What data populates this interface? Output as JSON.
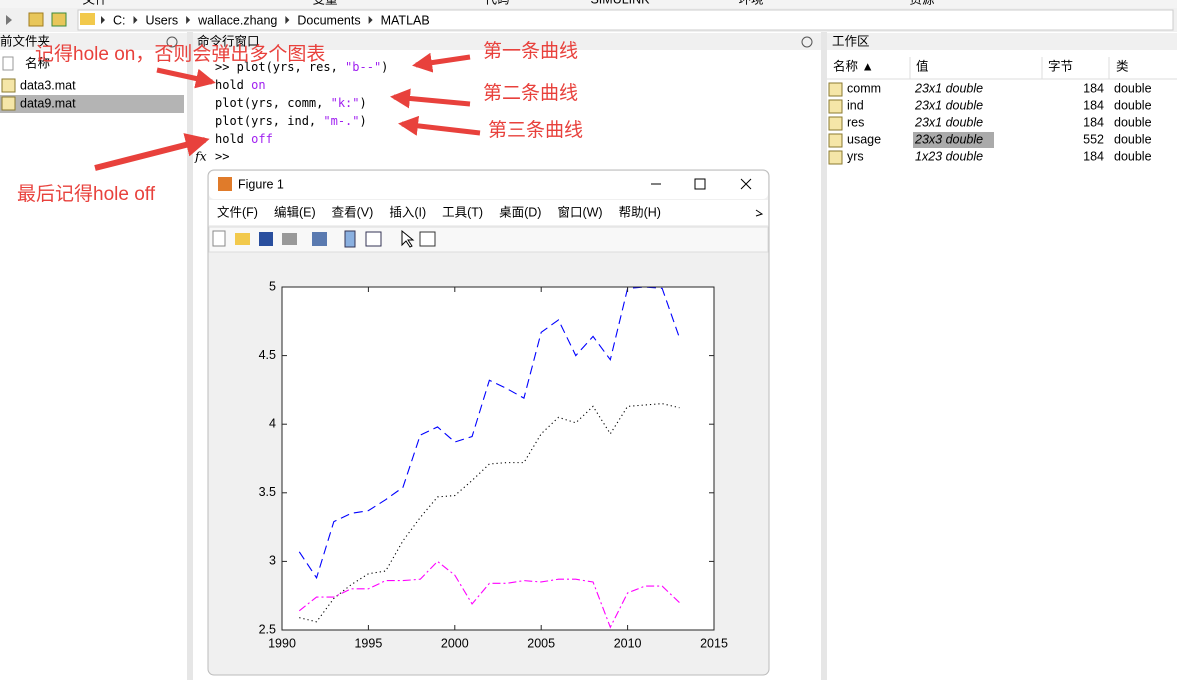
{
  "toolbar": {
    "tabs": [
      "文件",
      "变量",
      "代码",
      "SIMULINK",
      "环境",
      "资源"
    ],
    "path": [
      "C:",
      "Users",
      "wallace.zhang",
      "Documents",
      "MATLAB"
    ]
  },
  "current_folder": {
    "title": "前文件夹",
    "column": "名称",
    "files": [
      "data3.mat",
      "data9.mat"
    ]
  },
  "command_window": {
    "title": "命令行窗口",
    "lines": [
      [
        ">> plot(yrs, res, ",
        "\"b--\"",
        ")"
      ],
      [
        "hold ",
        "on"
      ],
      [
        "plot(yrs, comm, ",
        "\"k:\"",
        ")"
      ],
      [
        "plot(yrs, ind, ",
        "\"m-.\"",
        ")"
      ],
      [
        "hold ",
        "off"
      ]
    ],
    "function_icon": "fx",
    "prompt": ">>"
  },
  "annotations": [
    "记得hole on，否则会弹出多个图表",
    "第一条曲线",
    "第二条曲线",
    "第三条曲线",
    "最后记得hole off"
  ],
  "workspace": {
    "title": "工作区",
    "columns": [
      "名称 ▲",
      "值",
      "字节",
      "类"
    ],
    "rows": [
      [
        "comm",
        "23x1 double",
        184,
        "double"
      ],
      [
        "ind",
        "23x1 double",
        184,
        "double"
      ],
      [
        "res",
        "23x1 double",
        184,
        "double"
      ],
      [
        "usage",
        "23x3 double",
        552,
        "double"
      ],
      [
        "yrs",
        "1x23 double",
        184,
        "double"
      ]
    ]
  },
  "figure": {
    "title": "Figure 1",
    "menu": [
      "文件(F)",
      "编辑(E)",
      "查看(V)",
      "插入(I)",
      "工具(T)",
      "桌面(D)",
      "窗口(W)",
      "帮助(H)"
    ],
    "chart_data": {
      "type": "line",
      "x": [
        1991,
        1992,
        1993,
        1994,
        1995,
        1996,
        1997,
        1998,
        1999,
        2000,
        2001,
        2002,
        2003,
        2004,
        2005,
        2006,
        2007,
        2008,
        2009,
        2010,
        2011,
        2012,
        2013
      ],
      "series": [
        {
          "color": "#0000ff",
          "line_style": "--",
          "values": [
            3.07,
            2.88,
            3.29,
            3.35,
            3.37,
            3.45,
            3.54,
            3.92,
            3.98,
            3.87,
            3.91,
            4.32,
            4.26,
            4.19,
            4.67,
            4.76,
            4.5,
            4.64,
            4.47,
            4.99,
            5.0,
            4.99,
            4.63
          ]
        },
        {
          "color": "#000000",
          "line_style": ":",
          "values": [
            2.59,
            2.56,
            2.73,
            2.83,
            2.91,
            2.93,
            3.15,
            3.32,
            3.47,
            3.48,
            3.59,
            3.71,
            3.72,
            3.72,
            3.93,
            4.05,
            4.01,
            4.13,
            3.93,
            4.13,
            4.14,
            4.15,
            4.12
          ]
        },
        {
          "color": "#ff00ff",
          "line_style": "-.",
          "values": [
            2.64,
            2.74,
            2.74,
            2.8,
            2.8,
            2.86,
            2.86,
            2.87,
            3.0,
            2.9,
            2.69,
            2.84,
            2.84,
            2.86,
            2.85,
            2.87,
            2.87,
            2.85,
            2.52,
            2.77,
            2.82,
            2.82,
            2.7
          ]
        }
      ],
      "xlim": [
        1990,
        2015
      ],
      "xticks": [
        1990,
        1995,
        2000,
        2005,
        2010,
        2015
      ],
      "ylim": [
        2.5,
        5
      ],
      "yticks": [
        2.5,
        3,
        3.5,
        4,
        4.5,
        5
      ]
    }
  }
}
